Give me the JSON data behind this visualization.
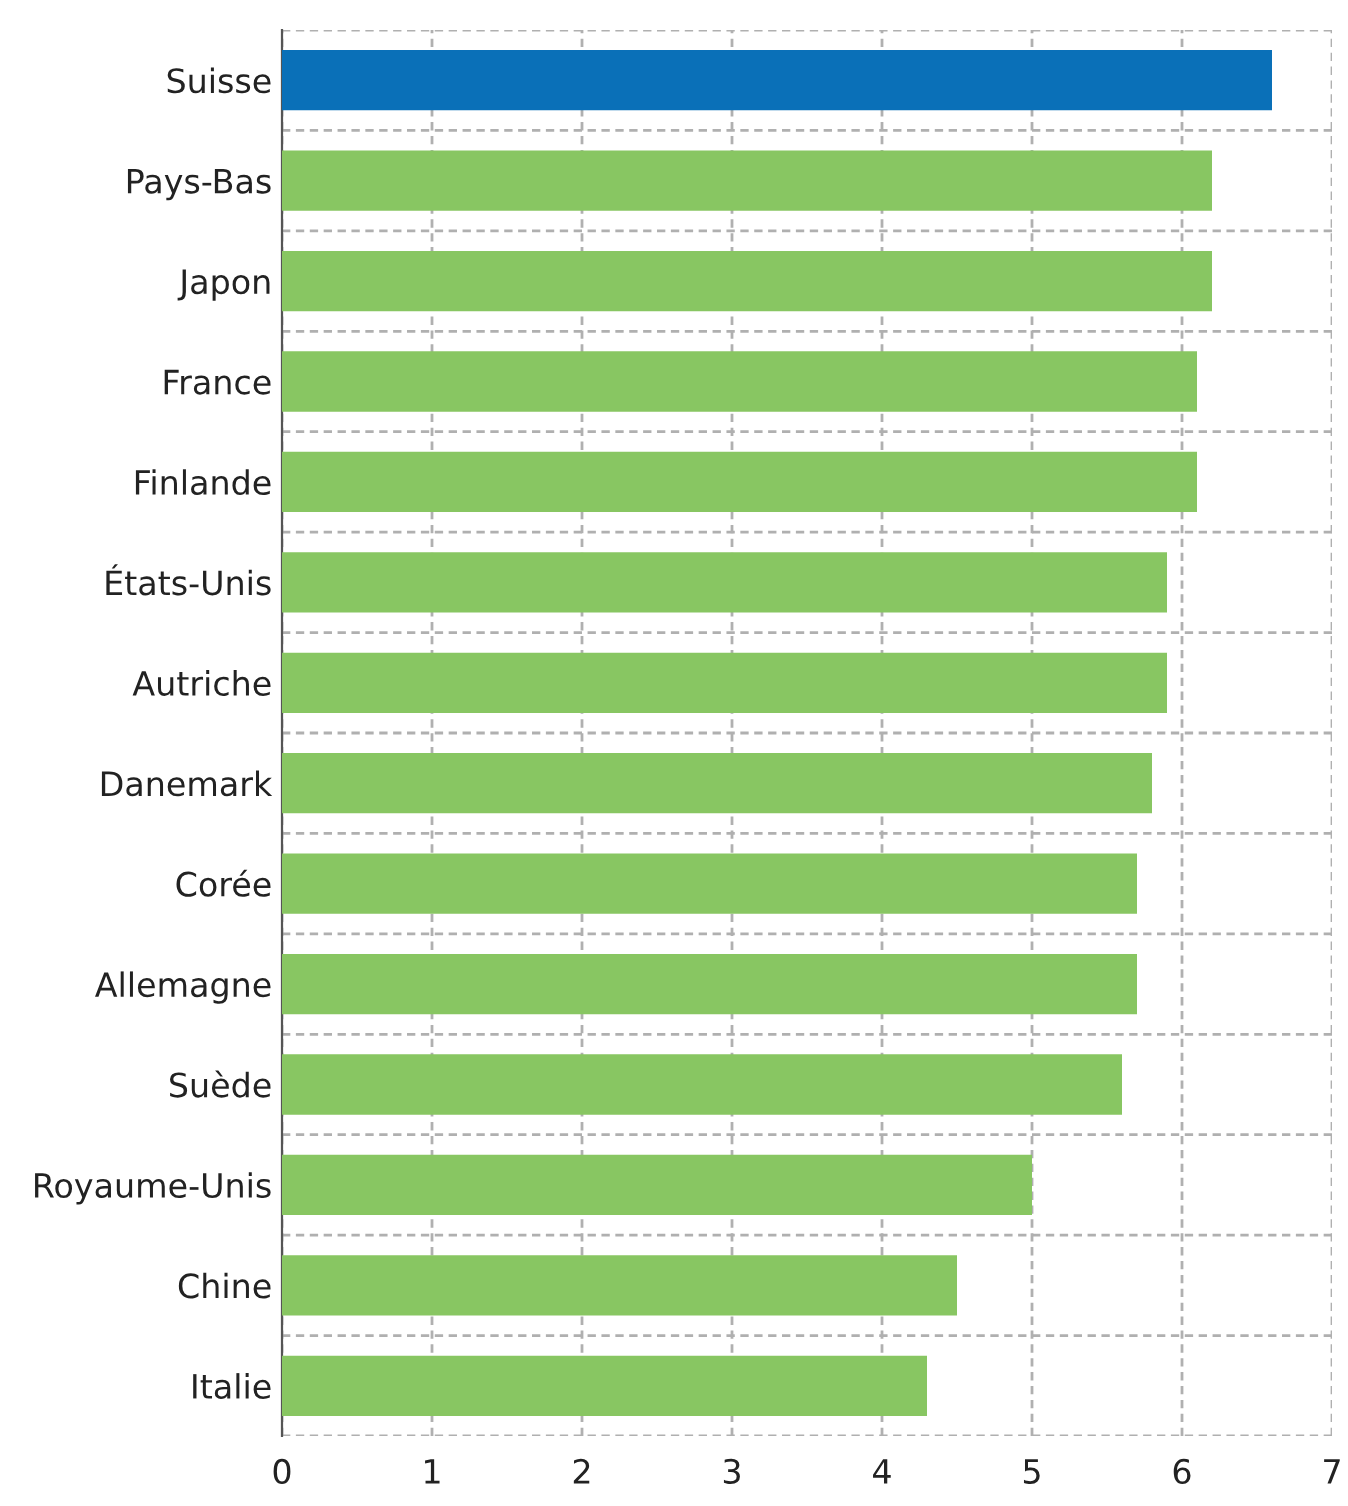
{
  "chart_data": {
    "type": "bar",
    "orientation": "horizontal",
    "categories": [
      "Suisse",
      "Pays-Bas",
      "Japon",
      "France",
      "Finlande",
      "États-Unis",
      "Autriche",
      "Danemark",
      "Corée",
      "Allemagne",
      "Suède",
      "Royaume-Unis",
      "Chine",
      "Italie"
    ],
    "values": [
      6.6,
      6.2,
      6.2,
      6.1,
      6.1,
      5.9,
      5.9,
      5.8,
      5.7,
      5.7,
      5.6,
      5.0,
      4.5,
      4.3
    ],
    "colors": [
      "#0a70b8",
      "#88c662",
      "#88c662",
      "#88c662",
      "#88c662",
      "#88c662",
      "#88c662",
      "#88c662",
      "#88c662",
      "#88c662",
      "#88c662",
      "#88c662",
      "#88c662",
      "#88c662"
    ],
    "xlim": [
      0,
      7
    ],
    "xticks": [
      0,
      1,
      2,
      3,
      4,
      5,
      6,
      7
    ],
    "grid": true
  }
}
